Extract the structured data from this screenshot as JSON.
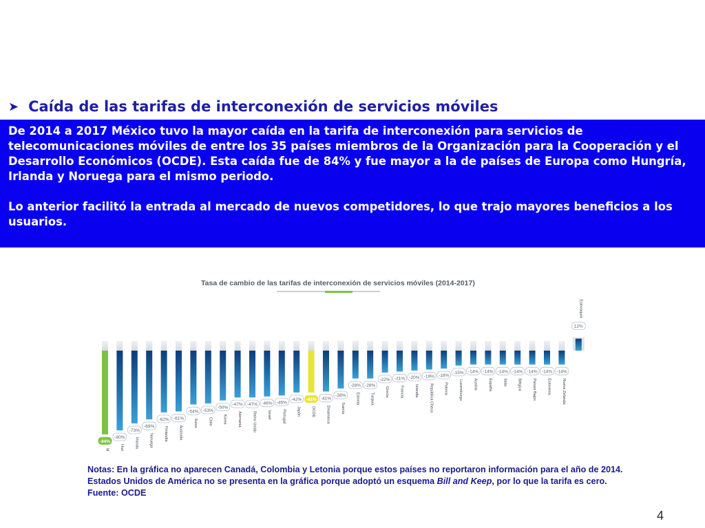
{
  "section": {
    "bullet_icon": "arrow-bullet-icon",
    "title": "Caída de las tarifas de interconexión de servicios móviles"
  },
  "box": {
    "paragraph1": "De 2014 a 2017 México tuvo la mayor caída en la tarifa de interconexión para servicios de telecomunicaciones móviles de entre los 35 países miembros de la Organización para la Cooperación y el Desarrollo Económicos (OCDE). Esta caída fue de 84% y fue mayor a la de países de Europa como Hungría, Irlanda y Noruega para el mismo periodo.",
    "paragraph2": "Lo anterior facilitó la entrada al mercado de nuevos competidores, lo que trajo mayores beneficios a los usuarios.",
    "background": "#0a00f0"
  },
  "chart_data": {
    "type": "bar",
    "title": "Tasa de cambio de las tarifas de interconexión de servicios móviles (2014-2017)",
    "categories": [
      "México",
      "Hungría",
      "Irlanda",
      "Noruega",
      "Finlandia",
      "Australia",
      "Suiza",
      "Chile",
      "Korea",
      "Alemania",
      "Reino Unido",
      "Israel",
      "Portugal",
      "Japón",
      "OCDE",
      "Dinamarca",
      "Suecia",
      "Estonia",
      "Turquía",
      "Grecia",
      "Francia",
      "Islandia",
      "República Checa",
      "Polonia",
      "Luxemburgo",
      "Austria",
      "España",
      "Italia",
      "Bélgica",
      "Países Bajos",
      "Eslovenia",
      "Nueva Zelanda",
      "Eslovaquia"
    ],
    "values": [
      -84,
      -80,
      -73,
      -69,
      -62,
      -61,
      -54,
      -53,
      -50,
      -47,
      -47,
      -46,
      -45,
      -42,
      -42,
      -41,
      -38,
      -28,
      -28,
      -22,
      -21,
      -20,
      -19,
      -18,
      -15,
      -14,
      -14,
      -14,
      -14,
      -14,
      -14,
      -14,
      12
    ],
    "value_labels": [
      "-84%",
      "-80%",
      "-73%",
      "-69%",
      "-62%",
      "-61%",
      "-54%",
      "-53%",
      "-50%",
      "-47%",
      "-47%",
      "-46%",
      "-45%",
      "-42%",
      "-42%",
      "-41%",
      "-38%",
      "-28%",
      "-28%",
      "-22%",
      "-21%",
      "-20%",
      "-19%",
      "-18%",
      "-15%",
      "-14%",
      "-14%",
      "-14%",
      "-14%",
      "-14%",
      "-14%",
      "-14%",
      "12%"
    ],
    "highlight": {
      "México": "#7cc242",
      "OCDE": "#e8e43a"
    },
    "colors": {
      "bar_top": "#0d3d7a",
      "bar_bottom": "#3aa0d8",
      "label_text": "#5a6470"
    },
    "ylim": [
      -84,
      12
    ]
  },
  "notes": {
    "line1": "Notas: En la gráfica no aparecen Canadá, Colombia y Letonia porque estos países no reportaron información para el año de 2014.",
    "line2_prefix": "Estados Unidos de América no se presenta en la gráfica porque adoptó un esquema ",
    "line2_emph": "Bill and Keep",
    "line2_suffix": ", por lo que la tarifa es cero.",
    "source": "Fuente: OCDE"
  },
  "page_number": "4"
}
